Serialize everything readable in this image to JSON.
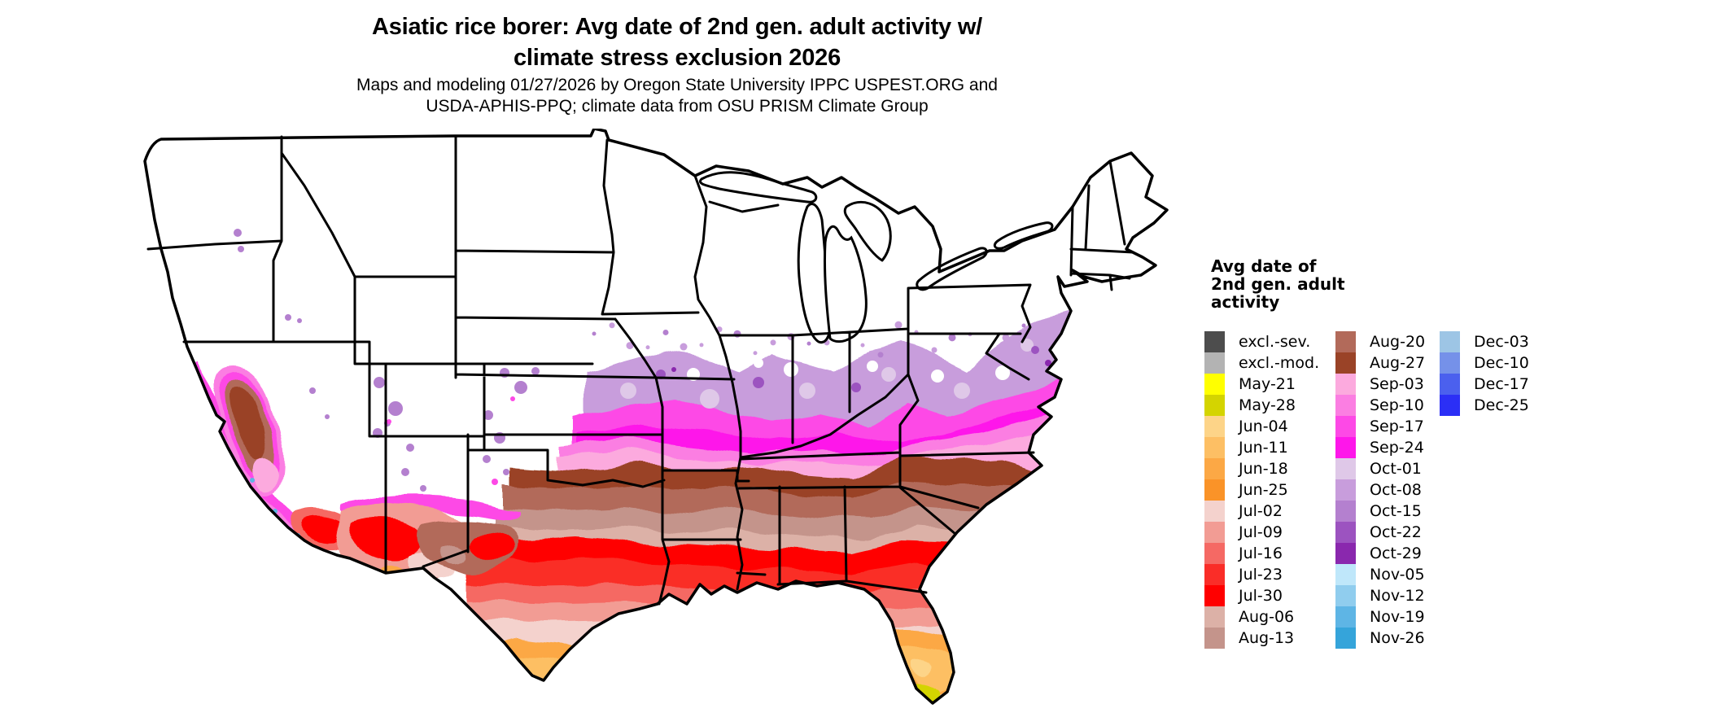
{
  "header": {
    "title_line1": "Asiatic rice borer: Avg date of 2nd gen. adult activity w/",
    "title_line2": "climate stress exclusion 2026",
    "subtitle_line1": "Maps and modeling 01/27/2026 by Oregon State University IPPC USPEST.ORG and",
    "subtitle_line2": "USDA-APHIS-PPQ; climate data from OSU PRISM Climate Group"
  },
  "legend": {
    "title_lines": [
      "Avg date of",
      "2nd gen. adult",
      "activity"
    ],
    "columns": [
      [
        {
          "label": "excl.-sev.",
          "color": "#4d4d4d"
        },
        {
          "label": "excl.-mod.",
          "color": "#b3b3b3"
        },
        {
          "label": "May-21",
          "color": "#ffff00"
        },
        {
          "label": "May-28",
          "color": "#d4d400"
        },
        {
          "label": "Jun-04",
          "color": "#fdd488"
        },
        {
          "label": "Jun-11",
          "color": "#fdbf64"
        },
        {
          "label": "Jun-18",
          "color": "#fca845"
        },
        {
          "label": "Jun-25",
          "color": "#fa9328"
        },
        {
          "label": "Jul-02",
          "color": "#f4d2cd"
        },
        {
          "label": "Jul-09",
          "color": "#f29c94"
        },
        {
          "label": "Jul-16",
          "color": "#f56964"
        },
        {
          "label": "Jul-23",
          "color": "#fa2d28"
        },
        {
          "label": "Jul-30",
          "color": "#ff0000"
        },
        {
          "label": "Aug-06",
          "color": "#dcb1a7"
        },
        {
          "label": "Aug-13",
          "color": "#c4948b"
        }
      ],
      [
        {
          "label": "Aug-20",
          "color": "#b26a5a"
        },
        {
          "label": "Aug-27",
          "color": "#9a4327"
        },
        {
          "label": "Sep-03",
          "color": "#fcaade"
        },
        {
          "label": "Sep-10",
          "color": "#fb7ee2"
        },
        {
          "label": "Sep-17",
          "color": "#fd49e6"
        },
        {
          "label": "Sep-24",
          "color": "#fe16ea"
        },
        {
          "label": "Oct-01",
          "color": "#dfc8e8"
        },
        {
          "label": "Oct-08",
          "color": "#c89ddc"
        },
        {
          "label": "Oct-15",
          "color": "#b480cf"
        },
        {
          "label": "Oct-22",
          "color": "#9c53c0"
        },
        {
          "label": "Oct-29",
          "color": "#8a28ae"
        },
        {
          "label": "Nov-05",
          "color": "#bfe7fa"
        },
        {
          "label": "Nov-12",
          "color": "#90cdee"
        },
        {
          "label": "Nov-19",
          "color": "#5eb5e5"
        },
        {
          "label": "Nov-26",
          "color": "#35a4da"
        }
      ],
      [
        {
          "label": "Dec-03",
          "color": "#9dc5e5"
        },
        {
          "label": "Dec-10",
          "color": "#7591e9"
        },
        {
          "label": "Dec-17",
          "color": "#4b60ee"
        },
        {
          "label": "Dec-25",
          "color": "#2b2ff6"
        }
      ]
    ]
  }
}
